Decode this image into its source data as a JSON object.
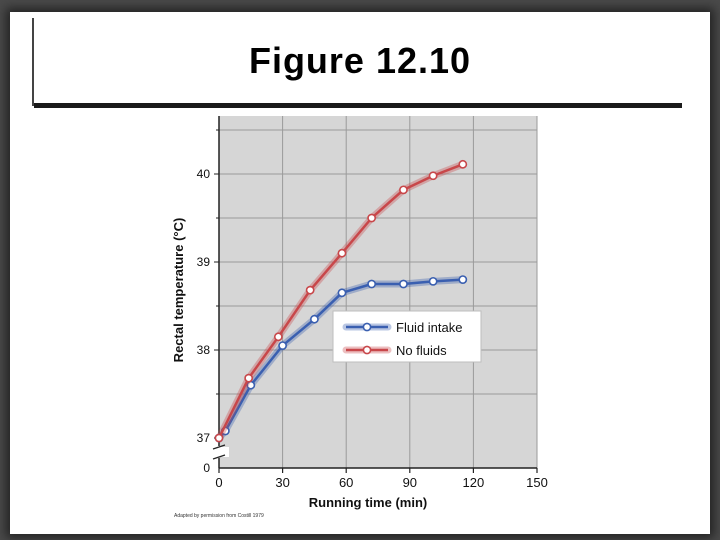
{
  "slide": {
    "title": "Figure 12.10",
    "credit": "Adapted by permission from Costill 1979"
  },
  "chart_data": {
    "type": "line",
    "xlabel": "Running time (min)",
    "ylabel": "Rectal temperature (°C)",
    "xlim": [
      0,
      150
    ],
    "ylim": [
      37,
      40.5
    ],
    "y_axis_break": true,
    "y_zero_label": "0",
    "xticks": [
      0,
      30,
      60,
      90,
      120,
      150
    ],
    "yticks": [
      37,
      38,
      39,
      40
    ],
    "grid": true,
    "legend": "center-right",
    "series": [
      {
        "name": "Fluid intake",
        "color": "#3a5fb0",
        "x": [
          0,
          3,
          15,
          30,
          45,
          58,
          72,
          87,
          101,
          115
        ],
        "y": [
          37.0,
          37.08,
          37.6,
          38.05,
          38.35,
          38.65,
          38.75,
          38.75,
          38.78,
          38.8
        ]
      },
      {
        "name": "No fluids",
        "color": "#c8474a",
        "x": [
          0,
          14,
          28,
          43,
          58,
          72,
          87,
          101,
          115
        ],
        "y": [
          37.0,
          37.68,
          38.15,
          38.68,
          39.1,
          39.5,
          39.82,
          39.98,
          40.11
        ]
      }
    ]
  }
}
